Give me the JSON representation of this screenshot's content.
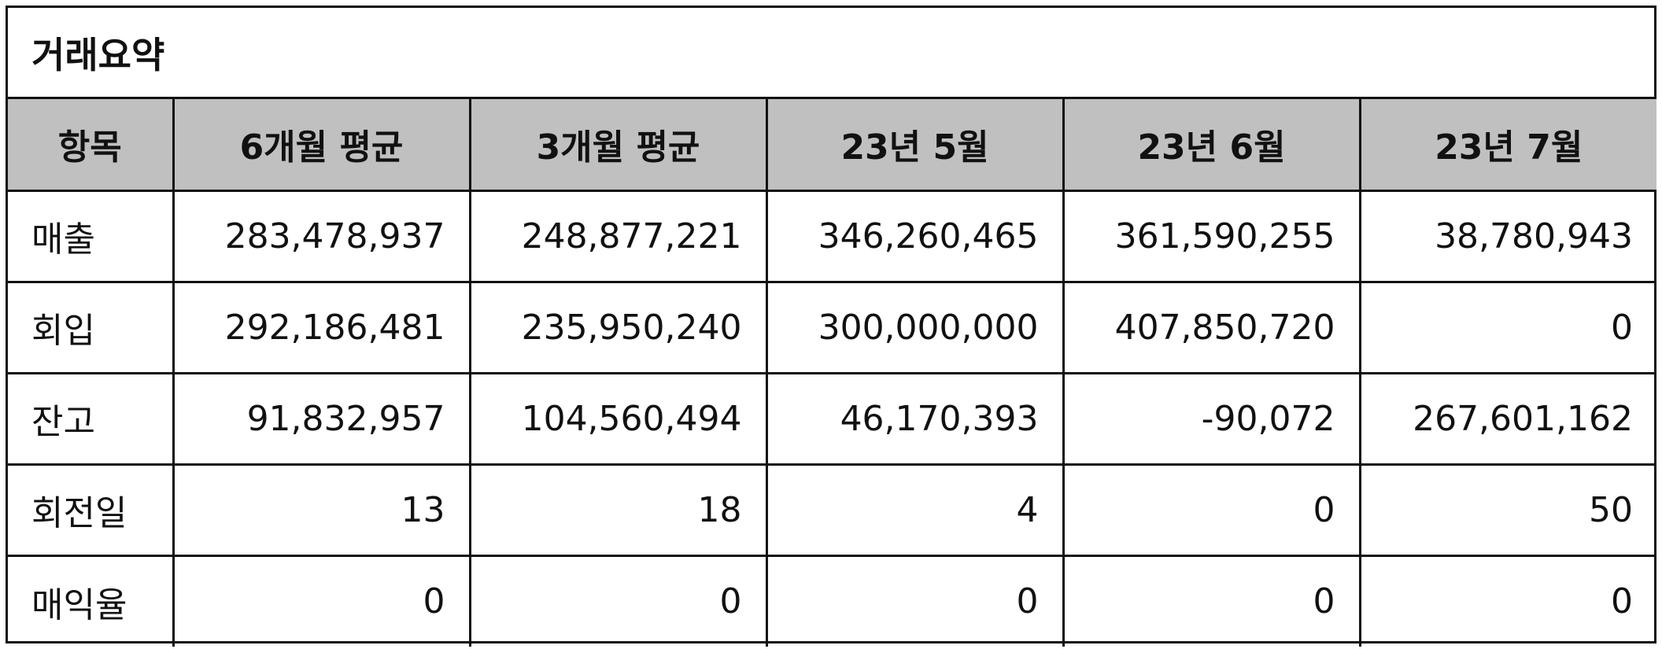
{
  "title": "거래요약",
  "headers": [
    "항목",
    "6개월 평균",
    "3개월 평균",
    "23년 5월",
    "23년 6월",
    "23년 7월"
  ],
  "rows": [
    {
      "label": "매출",
      "values": [
        "283,478,937",
        "248,877,221",
        "346,260,465",
        "361,590,255",
        "38,780,943"
      ]
    },
    {
      "label": "회입",
      "values": [
        "292,186,481",
        "235,950,240",
        "300,000,000",
        "407,850,720",
        "0"
      ]
    },
    {
      "label": "잔고",
      "values": [
        "91,832,957",
        "104,560,494",
        "46,170,393",
        "-90,072",
        "267,601,162"
      ]
    },
    {
      "label": "회전일",
      "values": [
        "13",
        "18",
        "4",
        "0",
        "50"
      ]
    },
    {
      "label": "매익율",
      "values": [
        "0",
        "0",
        "0",
        "0",
        "0"
      ]
    }
  ]
}
